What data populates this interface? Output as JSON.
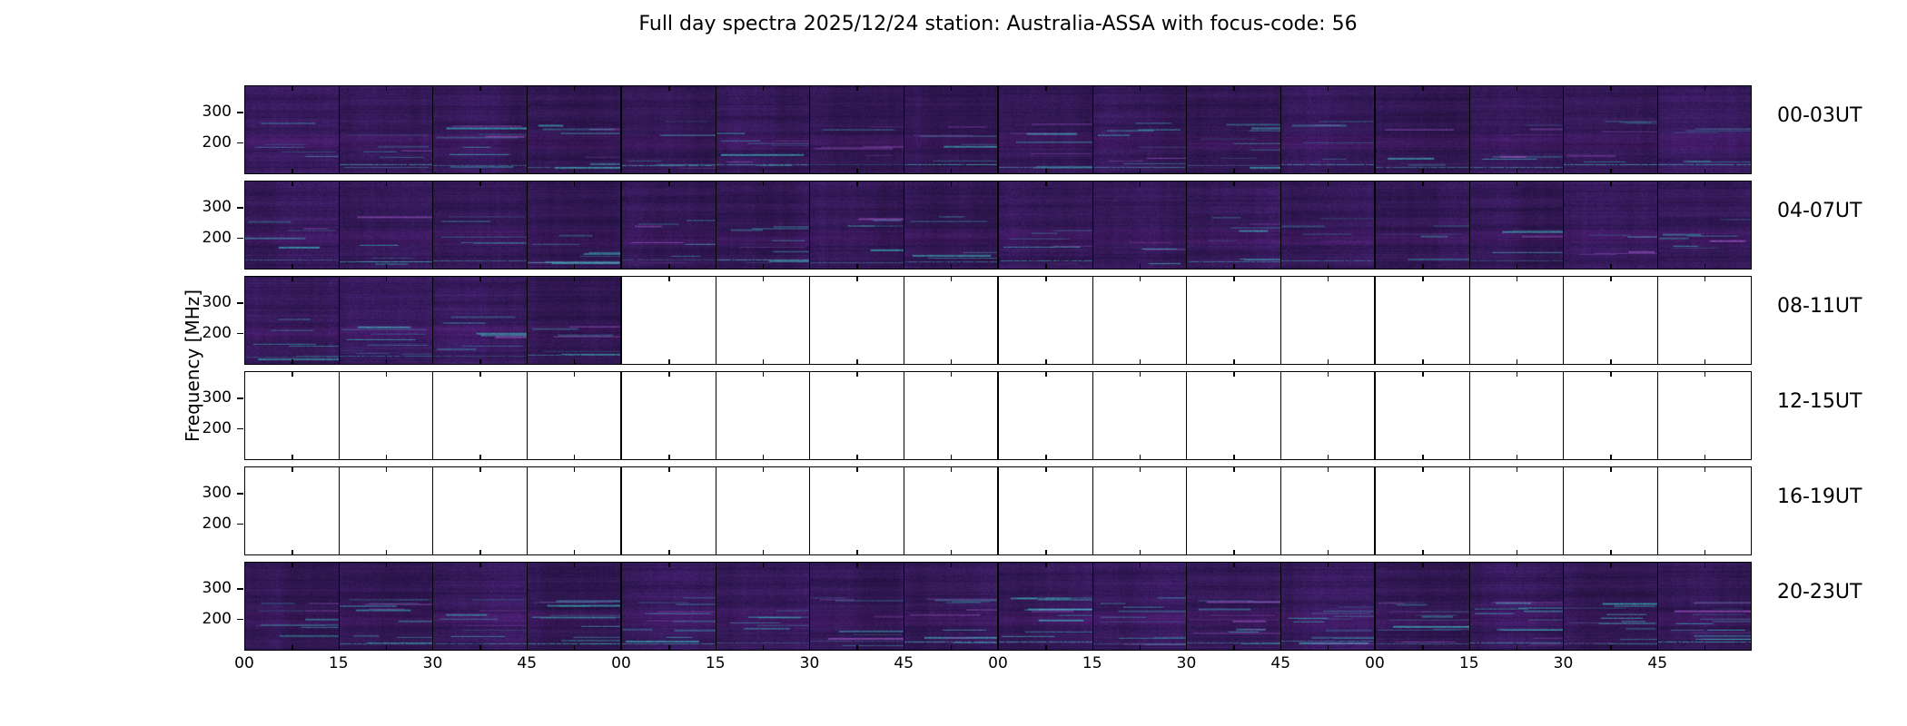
{
  "title": "Full day spectra 2025/12/24 station: Australia-ASSA with focus-code: 56",
  "ylabel": "Frequency [MHz]",
  "colors": {
    "spectrogram_base": "#37205c",
    "spectrogram_streak": "#3caab4",
    "empty_panel": "#ffffff",
    "frame": "#000000"
  },
  "y_tick_labels": [
    "300",
    "200"
  ],
  "x_tick_labels": [
    "00",
    "15",
    "30",
    "45",
    "00",
    "15",
    "30",
    "45",
    "00",
    "15",
    "30",
    "45",
    "00",
    "15",
    "30",
    "45"
  ],
  "rows": [
    {
      "label": "00-03UT",
      "segments_total": 16,
      "segments_filled": 16
    },
    {
      "label": "04-07UT",
      "segments_total": 16,
      "segments_filled": 16
    },
    {
      "label": "08-11UT",
      "segments_total": 16,
      "segments_filled": 4
    },
    {
      "label": "12-15UT",
      "segments_total": 16,
      "segments_filled": 0
    },
    {
      "label": "16-19UT",
      "segments_total": 16,
      "segments_filled": 0
    },
    {
      "label": "20-23UT",
      "segments_total": 16,
      "segments_filled": 16
    }
  ],
  "chart_data": {
    "type": "heatmap",
    "subtype": "radio-spectrogram-daily-overview",
    "title": "Full day spectra 2025/12/24 station: Australia-ASSA with focus-code: 56",
    "station": "Australia-ASSA",
    "date": "2025/12/24",
    "focus_code": "56",
    "ylabel": "Frequency [MHz]",
    "y_ticks": [
      300,
      200
    ],
    "x_units": "minutes past each hour",
    "x_tick_labels": [
      "00",
      "15",
      "30",
      "45",
      "00",
      "15",
      "30",
      "45",
      "00",
      "15",
      "30",
      "45",
      "00",
      "15",
      "30",
      "45"
    ],
    "segments_per_row": 16,
    "segment_duration_minutes": 15,
    "rows": [
      {
        "label": "00-03UT",
        "data_present_fraction": 1.0
      },
      {
        "label": "04-07UT",
        "data_present_fraction": 1.0
      },
      {
        "label": "08-11UT",
        "data_present_fraction": 0.25
      },
      {
        "label": "12-15UT",
        "data_present_fraction": 0.0
      },
      {
        "label": "16-19UT",
        "data_present_fraction": 0.0
      },
      {
        "label": "20-23UT",
        "data_present_fraction": 1.0
      }
    ],
    "colormap": "dark purple/indigo background with horizontal cyan interference streaks, brighter band near lower frequencies",
    "legend": "none",
    "grid": "15-minute sub-panel frames, thicker lines at hour boundaries"
  }
}
